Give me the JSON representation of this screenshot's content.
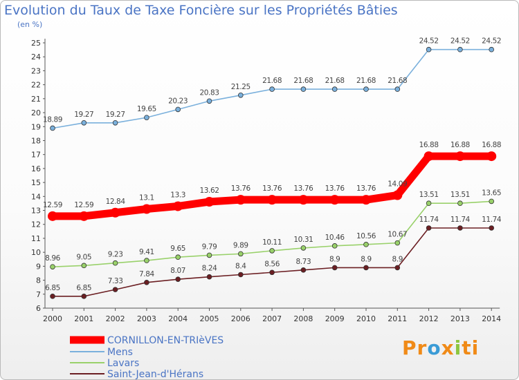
{
  "chart_data": {
    "type": "line",
    "title": "Evolution du Taux de Taxe Foncière sur les Propriétés Bâties",
    "subtitle": "(en %)",
    "x": [
      "2000",
      "2001",
      "2002",
      "2003",
      "2004",
      "2005",
      "2006",
      "2007",
      "2008",
      "2009",
      "2010",
      "2011",
      "2012",
      "2013",
      "2014"
    ],
    "ylim": [
      6,
      25
    ],
    "yticks": [
      "6",
      "7",
      "8",
      "9",
      "10",
      "11",
      "12",
      "13",
      "14",
      "15",
      "16",
      "17",
      "18",
      "19",
      "20",
      "21",
      "22",
      "23",
      "24",
      "25"
    ],
    "grid": false,
    "legend_position": "bottom-left",
    "series": [
      {
        "name": "CORNILLON-EN-TRIèVES",
        "color": "#ff0000",
        "labels": [
          "12.59",
          "12.59",
          "12.84",
          "13.1",
          "13.3",
          "13.62",
          "13.76",
          "13.76",
          "13.76",
          "13.76",
          "13.76",
          "14.09",
          "16.88",
          "16.88",
          "16.88"
        ],
        "values": [
          12.59,
          12.59,
          12.84,
          13.1,
          13.3,
          13.62,
          13.76,
          13.76,
          13.76,
          13.76,
          13.76,
          14.09,
          16.88,
          16.88,
          16.88
        ]
      },
      {
        "name": "Mens",
        "color": "#7ab0dc",
        "labels": [
          "18.89",
          "19.27",
          "19.27",
          "19.65",
          "20.23",
          "20.83",
          "21.25",
          "21.68",
          "21.68",
          "21.68",
          "21.68",
          "21.68",
          "24.52",
          "24.52",
          "24.52"
        ],
        "values": [
          18.89,
          19.27,
          19.27,
          19.65,
          20.23,
          20.83,
          21.25,
          21.68,
          21.68,
          21.68,
          21.68,
          21.68,
          24.52,
          24.52,
          24.52
        ]
      },
      {
        "name": "Lavars",
        "color": "#99d16a",
        "labels": [
          "8.96",
          "9.05",
          "9.23",
          "9.41",
          "9.65",
          "9.79",
          "9.89",
          "10.11",
          "10.31",
          "10.46",
          "10.56",
          "10.67",
          "13.51",
          "13.51",
          "13.65"
        ],
        "values": [
          8.96,
          9.05,
          9.23,
          9.41,
          9.65,
          9.79,
          9.89,
          10.11,
          10.31,
          10.46,
          10.56,
          10.67,
          13.51,
          13.51,
          13.65
        ]
      },
      {
        "name": "Saint-Jean-d'Hérans",
        "color": "#6b1e22",
        "labels": [
          "6.85",
          "6.85",
          "7.33",
          "7.84",
          "8.07",
          "8.24",
          "8.4",
          "8.56",
          "8.73",
          "8.9",
          "8.9",
          "8.9",
          "11.74",
          "11.74",
          "11.74"
        ],
        "values": [
          6.85,
          6.85,
          7.33,
          7.84,
          8.07,
          8.24,
          8.4,
          8.56,
          8.73,
          8.9,
          8.9,
          8.9,
          11.74,
          11.74,
          11.74
        ]
      }
    ]
  },
  "brand": {
    "p": "Pr",
    "o": "o",
    "x": "x",
    "i": "i",
    "ti": "ti"
  }
}
